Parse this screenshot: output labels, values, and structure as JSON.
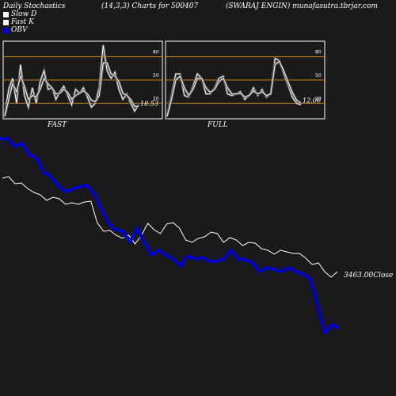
{
  "header": {
    "left": "Daily Stochastics",
    "params": "(14,3,3) Charts for 500407",
    "right": "(SWARAJ ENGIN) munafasutra.tbrjar.com"
  },
  "legend": [
    {
      "label": "Slow  D",
      "color": "#ffffff"
    },
    {
      "label": "Fast K",
      "color": "#ffffff"
    },
    {
      "label": "OBV",
      "color": "#0000cc"
    }
  ],
  "colors": {
    "background": "#1a1a1a",
    "grid": "#c87f0a",
    "line": "#ffffff",
    "obv": "#0000cc"
  },
  "footer": "",
  "chart_data": [
    {
      "type": "line",
      "title": "FAST",
      "ylim": [
        0,
        100
      ],
      "yticks": [
        20,
        50,
        80
      ],
      "series": [
        {
          "name": "Fast K",
          "values": [
            5,
            38,
            52,
            20,
            70,
            30,
            15,
            40,
            20,
            48,
            62,
            38,
            40,
            25,
            35,
            42,
            30,
            18,
            38,
            33,
            40,
            28,
            15,
            20,
            40,
            95,
            62,
            52,
            60,
            38,
            25,
            32,
            20,
            10,
            18
          ]
        },
        {
          "name": "Slow  D",
          "values": [
            3,
            25,
            45,
            35,
            55,
            42,
            25,
            30,
            28,
            38,
            52,
            45,
            40,
            32,
            33,
            38,
            34,
            25,
            30,
            33,
            36,
            32,
            24,
            22,
            30,
            72,
            72,
            58,
            55,
            48,
            33,
            30,
            25,
            16,
            16
          ]
        }
      ],
      "last_value": "18.53"
    },
    {
      "type": "line",
      "title": "FULL",
      "ylim": [
        0,
        100
      ],
      "yticks": [
        20,
        50,
        80
      ],
      "series": [
        {
          "name": "Fast K",
          "values": [
            5,
            30,
            58,
            58,
            30,
            28,
            42,
            58,
            52,
            32,
            32,
            40,
            52,
            55,
            32,
            30,
            32,
            35,
            25,
            30,
            40,
            30,
            38,
            28,
            32,
            78,
            75,
            58,
            44,
            28,
            20,
            18
          ]
        },
        {
          "name": "Slow  D",
          "values": [
            3,
            25,
            50,
            55,
            40,
            30,
            38,
            52,
            52,
            40,
            34,
            38,
            48,
            52,
            40,
            32,
            32,
            33,
            28,
            30,
            36,
            32,
            35,
            30,
            32,
            70,
            74,
            62,
            48,
            34,
            24,
            20
          ]
        }
      ],
      "last_value": "12.06"
    },
    {
      "type": "line",
      "title": "",
      "series": [
        {
          "name": "Close",
          "values": [
            225,
            223,
            232,
            231,
            238,
            243,
            246,
            253,
            249,
            251,
            258,
            256,
            258,
            255,
            254,
            281,
            292,
            291,
            297,
            301,
            297,
            308,
            297,
            282,
            290,
            295,
            283,
            281,
            288,
            303,
            306,
            301,
            299,
            293,
            295,
            306,
            300,
            303,
            310,
            306,
            307,
            314,
            316,
            321,
            316,
            318,
            320,
            320,
            326,
            334,
            332,
            343,
            350,
            343
          ]
        },
        {
          "name": "OBV",
          "values": [
            175,
            175,
            185,
            181,
            195,
            199,
            217,
            223,
            234,
            242,
            239,
            236,
            234,
            245,
            263,
            282,
            290,
            292,
            306,
            288,
            306,
            322,
            316,
            322,
            327,
            336,
            323,
            327,
            325,
            330,
            330,
            327,
            316,
            327,
            328,
            332,
            343,
            338,
            340,
            343,
            338,
            343,
            346,
            352,
            386,
            420,
            410,
            415
          ]
        }
      ],
      "close_label": "3463.00Close"
    }
  ]
}
